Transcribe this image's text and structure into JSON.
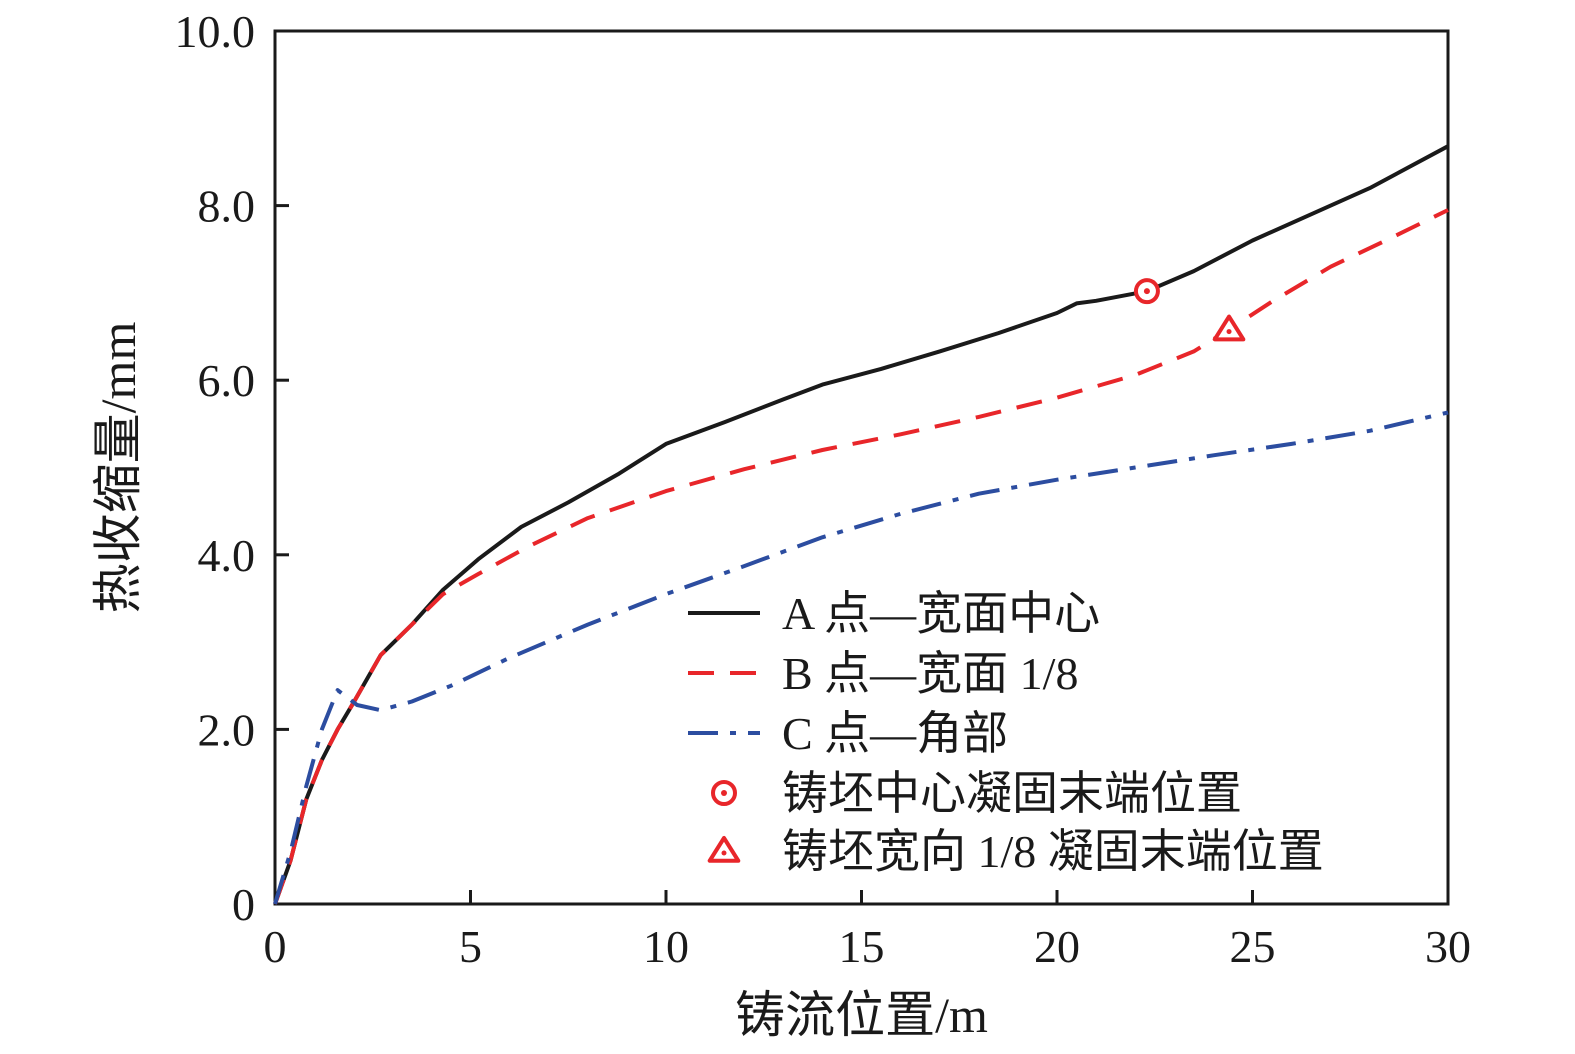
{
  "chart_data": {
    "type": "line",
    "xlabel": "铸流位置/m",
    "ylabel": "热收缩量/mm",
    "xlim": [
      0,
      30
    ],
    "ylim": [
      0,
      10
    ],
    "x_ticks": [
      0,
      5,
      10,
      15,
      20,
      25,
      30
    ],
    "x_tick_labels": [
      "0",
      "5",
      "10",
      "15",
      "20",
      "25",
      "30"
    ],
    "y_ticks": [
      0,
      2,
      4,
      6,
      8,
      10
    ],
    "y_tick_labels": [
      "0",
      "2.0",
      "4.0",
      "6.0",
      "8.0",
      "10.0"
    ],
    "grid": false,
    "legend_position": "center-right",
    "series": [
      {
        "name": "A 点—宽面中心",
        "color": "#1a1a1a",
        "style": "solid",
        "points": [
          [
            0,
            0
          ],
          [
            0.4,
            0.5
          ],
          [
            0.8,
            1.2
          ],
          [
            1.2,
            1.65
          ],
          [
            1.6,
            2.0
          ],
          [
            2.0,
            2.3
          ],
          [
            2.7,
            2.85
          ],
          [
            3.5,
            3.2
          ],
          [
            4.3,
            3.6
          ],
          [
            5.2,
            3.95
          ],
          [
            6.3,
            4.32
          ],
          [
            7.5,
            4.6
          ],
          [
            8.8,
            4.93
          ],
          [
            10.0,
            5.27
          ],
          [
            11.5,
            5.52
          ],
          [
            13.0,
            5.78
          ],
          [
            14.0,
            5.95
          ],
          [
            15.5,
            6.13
          ],
          [
            17.0,
            6.33
          ],
          [
            18.5,
            6.54
          ],
          [
            20.0,
            6.77
          ],
          [
            20.5,
            6.88
          ],
          [
            21.0,
            6.91
          ],
          [
            22.3,
            7.02
          ],
          [
            23.5,
            7.25
          ],
          [
            25.0,
            7.6
          ],
          [
            26.5,
            7.9
          ],
          [
            28.0,
            8.2
          ],
          [
            30.0,
            8.68
          ]
        ]
      },
      {
        "name": "B 点—宽面 1/8",
        "color": "#e8262a",
        "style": "dashed",
        "points": [
          [
            0,
            0
          ],
          [
            0.4,
            0.5
          ],
          [
            0.8,
            1.2
          ],
          [
            1.2,
            1.65
          ],
          [
            1.6,
            2.0
          ],
          [
            2.0,
            2.3
          ],
          [
            2.7,
            2.85
          ],
          [
            3.5,
            3.2
          ],
          [
            4.3,
            3.55
          ],
          [
            5.2,
            3.78
          ],
          [
            6.5,
            4.1
          ],
          [
            8.0,
            4.42
          ],
          [
            10.0,
            4.73
          ],
          [
            12.0,
            4.98
          ],
          [
            14.0,
            5.2
          ],
          [
            16.0,
            5.38
          ],
          [
            18.0,
            5.58
          ],
          [
            20.0,
            5.8
          ],
          [
            22.0,
            6.06
          ],
          [
            23.5,
            6.33
          ],
          [
            24.4,
            6.58
          ],
          [
            25.5,
            6.9
          ],
          [
            27.0,
            7.3
          ],
          [
            28.5,
            7.62
          ],
          [
            30.0,
            7.95
          ]
        ]
      },
      {
        "name": "C 点—角部",
        "color": "#2c4da0",
        "style": "dashdot",
        "points": [
          [
            0,
            0
          ],
          [
            0.4,
            0.6
          ],
          [
            0.8,
            1.35
          ],
          [
            1.2,
            2.0
          ],
          [
            1.6,
            2.45
          ],
          [
            2.1,
            2.28
          ],
          [
            2.7,
            2.22
          ],
          [
            3.5,
            2.32
          ],
          [
            4.5,
            2.5
          ],
          [
            6.0,
            2.82
          ],
          [
            8.0,
            3.2
          ],
          [
            10.0,
            3.55
          ],
          [
            12.0,
            3.87
          ],
          [
            14.0,
            4.2
          ],
          [
            16.0,
            4.47
          ],
          [
            18.0,
            4.7
          ],
          [
            20.0,
            4.86
          ],
          [
            22.0,
            5.0
          ],
          [
            24.0,
            5.14
          ],
          [
            26.0,
            5.27
          ],
          [
            28.0,
            5.42
          ],
          [
            30.0,
            5.63
          ]
        ]
      }
    ],
    "markers": [
      {
        "name": "铸坯中心凝固末端位置",
        "shape": "circle",
        "color": "#e8262a",
        "x": 22.3,
        "y": 7.02
      },
      {
        "name": "铸坯宽向 1/8 凝固末端位置",
        "shape": "triangle",
        "color": "#e8262a",
        "x": 24.4,
        "y": 6.58
      }
    ]
  }
}
